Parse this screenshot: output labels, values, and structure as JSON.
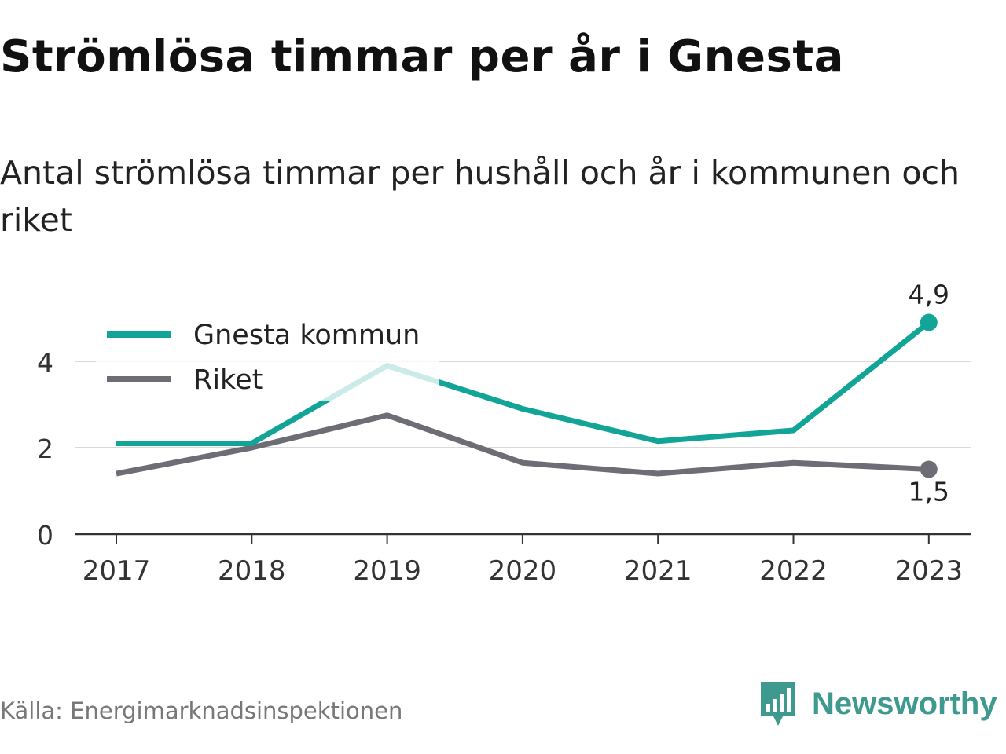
{
  "header": {
    "title": "Strömlösa timmar per år i Gnesta",
    "subtitle": "Antal strömlösa timmar per hushåll och år i kommunen och riket"
  },
  "footer": {
    "source": "Källa: Energimarknadsinspektionen",
    "brand": "Newsworthy",
    "brand_icon": "bar-chart-speech-bubble-icon"
  },
  "colors": {
    "gnesta": "#12a497",
    "riket": "#6e6d75",
    "grid": "#d9d9d9",
    "axis": "#333333",
    "brand": "#3e9a8e"
  },
  "chart_data": {
    "type": "line",
    "x": [
      "2017",
      "2018",
      "2019",
      "2020",
      "2021",
      "2022",
      "2023"
    ],
    "ylim": [
      0,
      5
    ],
    "yticks": [
      "0",
      "2",
      "4"
    ],
    "grid": true,
    "legend_position": "top-left",
    "series": [
      {
        "name": "Gnesta kommun",
        "values": [
          2.1,
          2.1,
          3.9,
          2.9,
          2.15,
          2.4,
          4.9
        ],
        "end_label": "4,9"
      },
      {
        "name": "Riket",
        "values": [
          1.4,
          2.0,
          2.75,
          1.65,
          1.4,
          1.65,
          1.5
        ],
        "end_label": "1,5"
      }
    ]
  }
}
